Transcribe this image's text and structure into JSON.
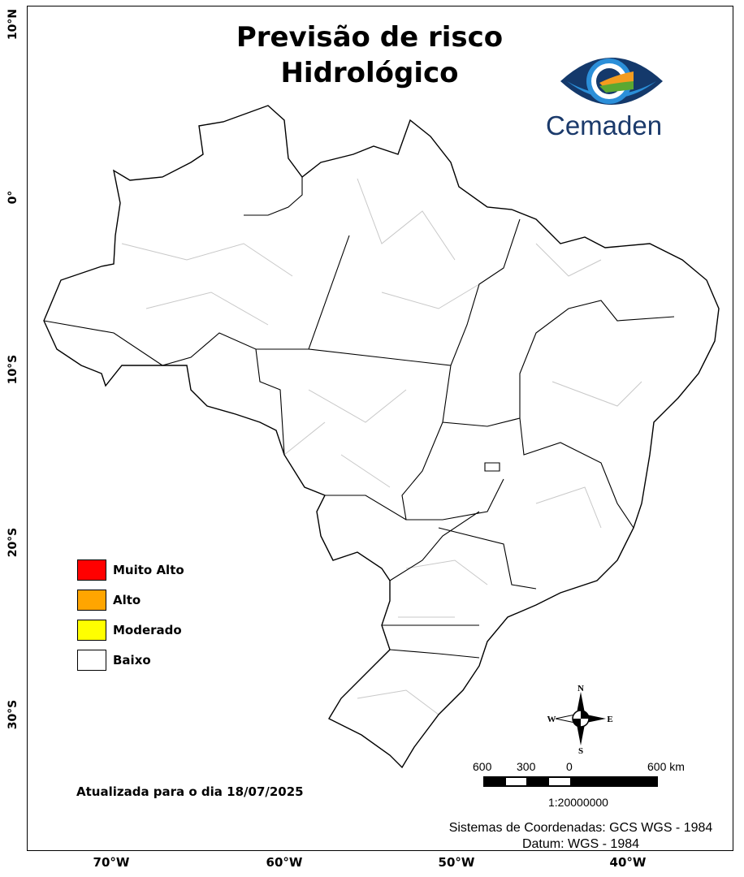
{
  "title": [
    "Previsão de risco",
    "Hidrológico"
  ],
  "logo": {
    "text": "Cemaden",
    "colors": [
      "#14396b",
      "#2b8fd9",
      "#f39c1f",
      "#5aa832"
    ]
  },
  "axes": {
    "lat_labels": [
      "10°N",
      "0°",
      "10°S",
      "20°S",
      "30°S"
    ],
    "lon_labels": [
      "70°W",
      "60°W",
      "50°W",
      "40°W"
    ]
  },
  "legend": [
    {
      "label": "Muito Alto",
      "color": "#ff0000"
    },
    {
      "label": "Alto",
      "color": "#ffa500"
    },
    {
      "label": "Moderado",
      "color": "#ffff00"
    },
    {
      "label": "Baixo",
      "color": "#ffffff"
    }
  ],
  "updated": "Atualizada para o dia 18/07/2025",
  "compass": {
    "n": "N",
    "s": "S",
    "e": "E",
    "w": "W"
  },
  "scalebar": {
    "labels": [
      "600",
      "300",
      "0",
      "600 km"
    ],
    "ratio": "1:20000000"
  },
  "crs": {
    "line1": "Sistemas de Coordenadas: GCS WGS - 1984",
    "line2": "Datum: WGS - 1984"
  }
}
